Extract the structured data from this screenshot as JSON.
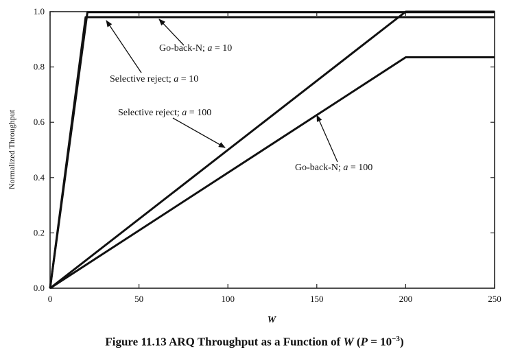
{
  "chart_data": {
    "type": "line",
    "xlabel": "W",
    "ylabel": "Normalized Throughput",
    "xlim": [
      0,
      250
    ],
    "ylim": [
      0,
      1.0
    ],
    "xticks": [
      0,
      50,
      100,
      150,
      200,
      250
    ],
    "xtick_labels": [
      "0",
      "50",
      "100",
      "150",
      "200",
      "250"
    ],
    "yticks": [
      0.0,
      0.2,
      0.4,
      0.6,
      0.8,
      1.0
    ],
    "ytick_labels": [
      "0.0",
      "0.2",
      "0.4",
      "0.6",
      "0.8",
      "1.0"
    ],
    "grid": false,
    "series": [
      {
        "name": "Go-back-N; a = 10",
        "x": [
          0,
          21,
          250
        ],
        "y": [
          0,
          0.998,
          0.998
        ]
      },
      {
        "name": "Selective reject; a = 10",
        "x": [
          0,
          20,
          250
        ],
        "y": [
          0,
          0.98,
          0.98
        ]
      },
      {
        "name": "Selective reject; a = 100",
        "x": [
          0,
          200,
          250
        ],
        "y": [
          0,
          1.0,
          1.0
        ]
      },
      {
        "name": "Go-back-N; a = 100",
        "x": [
          0,
          200,
          250
        ],
        "y": [
          0,
          0.835,
          0.835
        ]
      }
    ],
    "annotations": [
      {
        "label": "Go-back-N; a = 10",
        "parts": [
          "Go-back-N; ",
          "a",
          " = 10"
        ]
      },
      {
        "label": "Selective reject; a = 10",
        "parts": [
          "Selective reject; ",
          "a",
          " = 10"
        ]
      },
      {
        "label": "Selective reject; a = 100",
        "parts": [
          "Selective reject; ",
          "a",
          " = 100"
        ]
      },
      {
        "label": "Go-back-N; a = 100",
        "parts": [
          "Go-back-N; ",
          "a",
          " = 100"
        ]
      }
    ]
  },
  "caption": {
    "prefix": "Figure 11.13   ARQ Throughput as a Function of ",
    "w": "W",
    "open": " (",
    "p": "P",
    "eq": " = 10",
    "exp": "−3",
    "close": ")"
  }
}
